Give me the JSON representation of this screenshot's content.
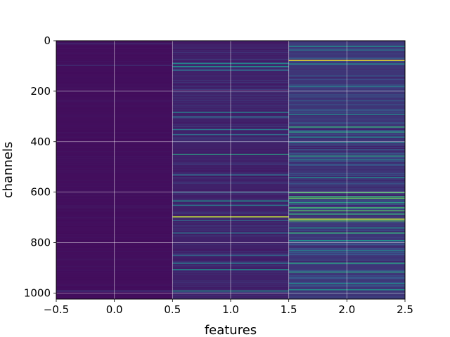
{
  "chart_data": {
    "type": "heatmap",
    "title": "",
    "xlabel": "features",
    "ylabel": "channels",
    "xlim": [
      -0.5,
      2.5
    ],
    "ylim": [
      1024,
      0
    ],
    "y_inverted": true,
    "grid": true,
    "colormap": "viridis",
    "x_ticks": [
      "-0.5",
      "0.0",
      "0.5",
      "1.0",
      "1.5",
      "2.0",
      "2.5"
    ],
    "y_ticks": [
      "0",
      "200",
      "400",
      "600",
      "800",
      "1000"
    ],
    "columns": [
      {
        "feature": 0,
        "base_level": 0.04,
        "bright_rows": [
          {
            "channel": 10,
            "level": 0.12
          },
          {
            "channel": 96,
            "level": 0.12
          },
          {
            "channel": 990,
            "level": 0.18
          }
        ]
      },
      {
        "feature": 1,
        "base_level": 0.1,
        "bright_rows": [
          {
            "channel": 88,
            "level": 0.45
          },
          {
            "channel": 100,
            "level": 0.5
          },
          {
            "channel": 115,
            "level": 0.35
          },
          {
            "channel": 282,
            "level": 0.4
          },
          {
            "channel": 300,
            "level": 0.35
          },
          {
            "channel": 350,
            "level": 0.4
          },
          {
            "channel": 370,
            "level": 0.35
          },
          {
            "channel": 448,
            "level": 0.55
          },
          {
            "channel": 530,
            "level": 0.35
          },
          {
            "channel": 598,
            "level": 0.35
          },
          {
            "channel": 633,
            "level": 0.5
          },
          {
            "channel": 650,
            "level": 0.4
          },
          {
            "channel": 696,
            "level": 0.9
          },
          {
            "channel": 710,
            "level": 0.35
          },
          {
            "channel": 760,
            "level": 0.35
          },
          {
            "channel": 850,
            "level": 0.35
          },
          {
            "channel": 880,
            "level": 0.4
          },
          {
            "channel": 905,
            "level": 0.5
          },
          {
            "channel": 990,
            "level": 0.5
          }
        ]
      },
      {
        "feature": 2,
        "base_level": 0.16,
        "bright_rows": [
          {
            "channel": 20,
            "level": 0.5
          },
          {
            "channel": 35,
            "level": 0.4
          },
          {
            "channel": 76,
            "level": 0.98
          },
          {
            "channel": 90,
            "level": 0.45
          },
          {
            "channel": 180,
            "level": 0.4
          },
          {
            "channel": 290,
            "level": 0.45
          },
          {
            "channel": 340,
            "level": 0.6
          },
          {
            "channel": 360,
            "level": 0.55
          },
          {
            "channel": 380,
            "level": 0.45
          },
          {
            "channel": 400,
            "level": 0.45
          },
          {
            "channel": 455,
            "level": 0.55
          },
          {
            "channel": 470,
            "level": 0.4
          },
          {
            "channel": 540,
            "level": 0.45
          },
          {
            "channel": 600,
            "level": 0.7
          },
          {
            "channel": 615,
            "level": 0.6
          },
          {
            "channel": 622,
            "level": 0.75
          },
          {
            "channel": 640,
            "level": 0.55
          },
          {
            "channel": 660,
            "level": 0.65
          },
          {
            "channel": 672,
            "level": 0.7
          },
          {
            "channel": 685,
            "level": 0.6
          },
          {
            "channel": 705,
            "level": 0.9
          },
          {
            "channel": 712,
            "level": 0.75
          },
          {
            "channel": 740,
            "level": 0.5
          },
          {
            "channel": 760,
            "level": 0.6
          },
          {
            "channel": 790,
            "level": 0.5
          },
          {
            "channel": 830,
            "level": 0.45
          },
          {
            "channel": 880,
            "level": 0.55
          },
          {
            "channel": 915,
            "level": 0.55
          },
          {
            "channel": 960,
            "level": 0.45
          },
          {
            "channel": 985,
            "level": 0.5
          }
        ]
      }
    ]
  }
}
